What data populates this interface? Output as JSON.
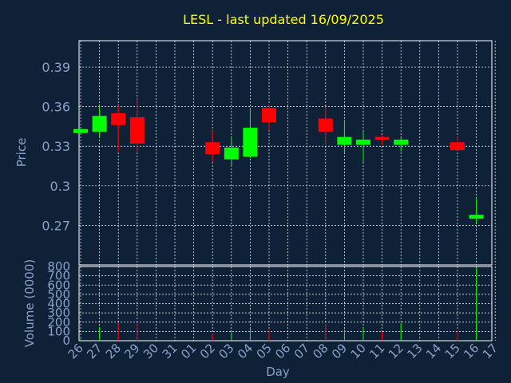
{
  "chart_data": {
    "type": "candlestick",
    "title": "LESL - last updated 16/09/2025",
    "xlabel": "Day",
    "ylabel_price": "Price",
    "ylabel_volume": "Volume (0000)",
    "x_ticks": [
      "26",
      "27",
      "28",
      "29",
      "30",
      "31",
      "01",
      "02",
      "03",
      "04",
      "05",
      "06",
      "07",
      "08",
      "09",
      "10",
      "11",
      "12",
      "13",
      "14",
      "15",
      "16",
      "17"
    ],
    "price_ylim": [
      0.24,
      0.41
    ],
    "price_ticks": [
      {
        "value": 0.39,
        "label": "0.39"
      },
      {
        "value": 0.36,
        "label": "0.36"
      },
      {
        "value": 0.33,
        "label": "0.33"
      },
      {
        "value": 0.3,
        "label": "0.3"
      },
      {
        "value": 0.27,
        "label": "0.27"
      }
    ],
    "volume_ylim": [
      0,
      800
    ],
    "volume_ticks": [
      0,
      100,
      200,
      300,
      400,
      500,
      600,
      700,
      800
    ],
    "grid": true,
    "colors": {
      "up": "#00ff00",
      "down": "#ff0000",
      "title": "#ffff00",
      "axis_text": "#8aa0c8",
      "grid": "#ffffff",
      "background": "#0f2137"
    },
    "candles": [
      {
        "day": "26",
        "open": 0.34,
        "close": 0.343,
        "high": 0.343,
        "low": 0.34,
        "volume": 20
      },
      {
        "day": "27",
        "open": 0.341,
        "close": 0.353,
        "high": 0.36,
        "low": 0.337,
        "volume": 150
      },
      {
        "day": "28",
        "open": 0.355,
        "close": 0.346,
        "high": 0.361,
        "low": 0.326,
        "volume": 190
      },
      {
        "day": "29",
        "open": 0.352,
        "close": 0.332,
        "high": 0.366,
        "low": 0.325,
        "volume": 200
      },
      {
        "day": "02",
        "open": 0.333,
        "close": 0.324,
        "high": 0.342,
        "low": 0.318,
        "volume": 80
      },
      {
        "day": "03",
        "open": 0.32,
        "close": 0.329,
        "high": 0.337,
        "low": 0.315,
        "volume": 100
      },
      {
        "day": "04",
        "open": 0.322,
        "close": 0.344,
        "high": 0.359,
        "low": 0.321,
        "volume": 150
      },
      {
        "day": "05",
        "open": 0.359,
        "close": 0.348,
        "high": 0.362,
        "low": 0.342,
        "volume": 120
      },
      {
        "day": "08",
        "open": 0.351,
        "close": 0.341,
        "high": 0.36,
        "low": 0.331,
        "volume": 180
      },
      {
        "day": "09",
        "open": 0.331,
        "close": 0.337,
        "high": 0.35,
        "low": 0.325,
        "volume": 120
      },
      {
        "day": "10",
        "open": 0.331,
        "close": 0.335,
        "high": 0.341,
        "low": 0.318,
        "volume": 140
      },
      {
        "day": "11",
        "open": 0.337,
        "close": 0.335,
        "high": 0.338,
        "low": 0.331,
        "volume": 100
      },
      {
        "day": "12",
        "open": 0.331,
        "close": 0.335,
        "high": 0.337,
        "low": 0.326,
        "volume": 190
      },
      {
        "day": "15",
        "open": 0.333,
        "close": 0.327,
        "high": 0.338,
        "low": 0.327,
        "volume": 110
      },
      {
        "day": "16",
        "open": 0.275,
        "close": 0.278,
        "high": 0.29,
        "low": 0.272,
        "volume": 780
      }
    ]
  }
}
